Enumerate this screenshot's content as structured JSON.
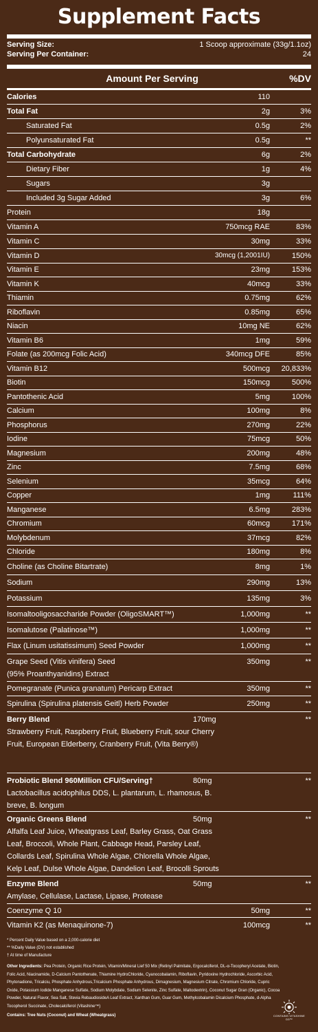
{
  "title": "Supplement Facts",
  "serving": {
    "size_label": "Serving Size:",
    "size_value": "1 Scoop approximate (33g/1.1oz)",
    "per_container_label": "Serving Per Container:",
    "per_container_value": "24"
  },
  "header": {
    "amount_per_serving": "Amount Per Serving",
    "dv": "%DV"
  },
  "nutrients": [
    {
      "name": "Calories",
      "amount": "110",
      "dv": "",
      "bold": true
    },
    {
      "name": "Total Fat",
      "amount": "2g",
      "dv": "3%",
      "bold": true
    },
    {
      "name": "Saturated Fat",
      "amount": "0.5g",
      "dv": "2%",
      "indent": true
    },
    {
      "name": "Polyunsaturated Fat",
      "amount": "0.5g",
      "dv": "**",
      "indent": true
    },
    {
      "name": "Total Carbohydrate",
      "amount": "6g",
      "dv": "2%",
      "bold": true
    },
    {
      "name": "Dietary Fiber",
      "amount": "1g",
      "dv": "4%",
      "indent": true
    },
    {
      "name": "Sugars",
      "amount": "3g",
      "dv": "",
      "indent": true
    },
    {
      "name": "Included 3g Sugar Added",
      "amount": "3g",
      "dv": "6%",
      "indent": true
    },
    {
      "name": "Protein",
      "amount": "18g",
      "dv": ""
    },
    {
      "name": "Vitamin A",
      "amount": "750mcg RAE",
      "dv": "83%"
    },
    {
      "name": "Vitamin C",
      "amount": "30mg",
      "dv": "33%"
    },
    {
      "name": "Vitamin D",
      "amount": "30mcg (1,2001IU)",
      "dv": "150%",
      "small": true
    },
    {
      "name": "Vitamin E",
      "amount": "23mg",
      "dv": "153%"
    },
    {
      "name": "Vitamin K",
      "amount": "40mcg",
      "dv": "33%"
    },
    {
      "name": "Thiamin",
      "amount": "0.75mg",
      "dv": "62%"
    },
    {
      "name": "Riboflavin",
      "amount": "0.85mg",
      "dv": "65%"
    },
    {
      "name": "Niacin",
      "amount": "10mg NE",
      "dv": "62%"
    },
    {
      "name": "Vitamin B6",
      "amount": "1mg",
      "dv": "59%"
    },
    {
      "name": "Folate (as 200mcg Folic Acid)",
      "amount": "340mcg DFE",
      "dv": "85%"
    },
    {
      "name": "Vitamin B12",
      "amount": "500mcg",
      "dv": "20,833%"
    },
    {
      "name": "Biotin",
      "amount": "150mcg",
      "dv": "500%"
    },
    {
      "name": "Pantothenic Acid",
      "amount": "5mg",
      "dv": "100%"
    },
    {
      "name": "Calcium",
      "amount": "100mg",
      "dv": "8%"
    },
    {
      "name": "Phosphorus",
      "amount": "270mg",
      "dv": "22%"
    },
    {
      "name": "Iodine",
      "amount": "75mcg",
      "dv": "50%"
    },
    {
      "name": "Magnesium",
      "amount": "200mg",
      "dv": "48%"
    },
    {
      "name": "Zinc",
      "amount": "7.5mg",
      "dv": "68%"
    },
    {
      "name": "Selenium",
      "amount": "35mcg",
      "dv": "64%"
    },
    {
      "name": "Copper",
      "amount": "1mg",
      "dv": "111%"
    },
    {
      "name": "Manganese",
      "amount": "6.5mg",
      "dv": "283%"
    },
    {
      "name": "Chromium",
      "amount": "60mcg",
      "dv": "171%"
    },
    {
      "name": "Molybdenum",
      "amount": "37mcg",
      "dv": "82%"
    },
    {
      "name": "Chloride",
      "amount": "180mg",
      "dv": "8%"
    },
    {
      "name": "Choline (as Choline Bitartrate)",
      "amount": "8mg",
      "dv": "1%"
    },
    {
      "name": "Sodium",
      "amount": "290mg",
      "dv": "13%"
    },
    {
      "name": "Potassium",
      "amount": "135mg",
      "dv": "3%"
    },
    {
      "name": "Isomaltooligosaccharide Powder (OligoSMART™)",
      "amount": "1,000mg",
      "dv": "**"
    },
    {
      "name": "Isomalutose (Palatinose™)",
      "amount": "1,000mg",
      "dv": "**"
    },
    {
      "name": "Flax (Linum usitatissimum) Seed Powder",
      "amount": "1,000mg",
      "dv": "**"
    },
    {
      "name": "Grape Seed (Vitis vinifera) Seed",
      "detail": "(95% Proanthyanidins) Extract",
      "amount": "350mg",
      "dv": "**"
    },
    {
      "name": "Pomegranate (Punica granatum) Pericarp Extract",
      "amount": "350mg",
      "dv": "**"
    },
    {
      "name": "Spirulina (Spirulina platensis Geitl) Herb Powder",
      "amount": "250mg",
      "dv": "**"
    },
    {
      "name": "Berry Blend",
      "detail": "Strawberry Fruit, Raspberry Fruit, Blueberry Fruit, sour Cherry Fruit, European Elderberry, Cranberry Fruit, (Vita Berry®)",
      "amount": "170mg",
      "dv": "**",
      "bold": true,
      "blend": true
    },
    {
      "name": "Probiotic Blend 960Million CFU/Serving†",
      "detail": "Lactobacillus acidophilus DDS, L. plantarum, L. rhamosus, B. breve, B. longum",
      "amount": "80mg",
      "dv": "**",
      "bold": true,
      "blend": true
    },
    {
      "name": "Organic Greens Blend",
      "detail": "Alfalfa Leaf Juice, Wheatgrass Leaf, Barley Grass, Oat Grass Leaf, Broccoli, Whole Plant, Cabbage Head, Parsley Leaf, Collards Leaf, Spirulina Whole Algae, Chlorella Whole Algae, Kelp Leaf, Dulse Whole Algae, Dandelion Leaf, Brocolli Sprouts",
      "amount": "50mg",
      "dv": "**",
      "bold": true,
      "blend": true
    },
    {
      "name": "Enzyme Blend",
      "detail": "Amylase, Cellulase, Lactase, Lipase, Protease",
      "amount": "50mg",
      "dv": "**",
      "bold": true,
      "blend": true
    },
    {
      "name": "Coenzyme Q 10",
      "amount": "50mg",
      "dv": "**"
    },
    {
      "name": "Vitamin K2 (as Menaquinone-7)",
      "amount": "100mcg",
      "dv": "**",
      "last": true
    }
  ],
  "footnotes": [
    "* Percent Daily Value based on a 2,000-calorie diet",
    "** %Daily Value (DV) not established",
    "† At time of Manufacture"
  ],
  "other_ingredients_label": "Other Ingredients:",
  "other_ingredients": "Pea Protein, Organic Rice Protein, Vitamin/Mineral Lief 50 Mix (Retinyl Palmitate, Ergocalciferol, DL-α-Tocopheryl Acetate, Biotin, Folic Acid, Niacinamide, D-Calcium Pantothenate, Thiamine HydroChloride, Cyanocobalamin, Riboflavin, Pyridoxine Hydrochloride, Ascorbic Acid, Phytonadione, Tricalciu, Phosphate Anhydrous,Tricalcium Phosphate Anhydrous, Dimagnesium, Magnesium Citrate, Chromium Chloride, Cupric Oxide, Potassium Iodide Manganese Sulfate, Sodium Molybdate, Sodium Selenite, Zinc Sulfate, Maltodextrin), Coconut Sugar Gran (Organic), Cocoa Powder, Natural Flavor, Sea Salt, Stevia RebaudiosideA Leaf Extract, Xanthan Gum, Guar Gum, Methylcobalamin Dicalcium Phosphate, d-Alpha Tocopherol Succinate, Cholecalciferol (Vitashine™)",
  "contains": "Contains: Tree Nuts (Coconut) and Wheat (Wheatgrass)",
  "logo": {
    "icon": "vitashine-sun-icon",
    "text": "CONTAINS VITASHINE D3™"
  }
}
